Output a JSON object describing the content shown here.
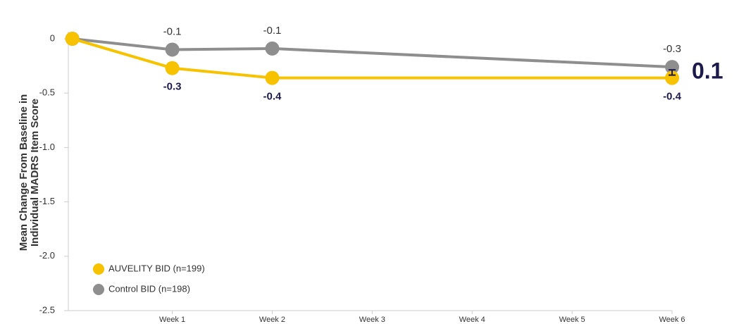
{
  "chart_data": {
    "type": "line",
    "ylabel": [
      "Mean Change From Baseline in",
      "Individual MADRS Item Score"
    ],
    "x": [
      0,
      1,
      2,
      6
    ],
    "xlim": [
      -0.04,
      6
    ],
    "xticks": [
      {
        "value": 1,
        "label": "Week 1"
      },
      {
        "value": 2,
        "label": "Week 2"
      },
      {
        "value": 3,
        "label": "Week 3"
      },
      {
        "value": 4,
        "label": "Week 4"
      },
      {
        "value": 5,
        "label": "Week 5"
      },
      {
        "value": 6,
        "label": "Week 6"
      }
    ],
    "ylim": [
      -2.5,
      0
    ],
    "yticks": [
      0,
      -0.5,
      {
        "value": -1,
        "label": "-1.0"
      },
      -1.5,
      {
        "value": -2,
        "label": "-2.0"
      },
      -2.5
    ],
    "series": [
      {
        "name": "AUVELITY BID (n=199)",
        "color": "#f7c200",
        "label_color": "#1c1a4a",
        "label_position": "below",
        "values": [
          0,
          -0.27,
          -0.36,
          -0.36
        ],
        "value_labels": [
          null,
          "-0.3",
          "-0.4",
          "-0.4"
        ]
      },
      {
        "name": "Control BID (n=198)",
        "color": "#8e8e8e",
        "label_color": "#333333",
        "label_position": "above",
        "values": [
          0,
          -0.1,
          -0.09,
          -0.26
        ],
        "value_labels": [
          null,
          "-0.1",
          "-0.1",
          "-0.3"
        ]
      }
    ],
    "annotation": "0.1",
    "legend": "lower left"
  }
}
